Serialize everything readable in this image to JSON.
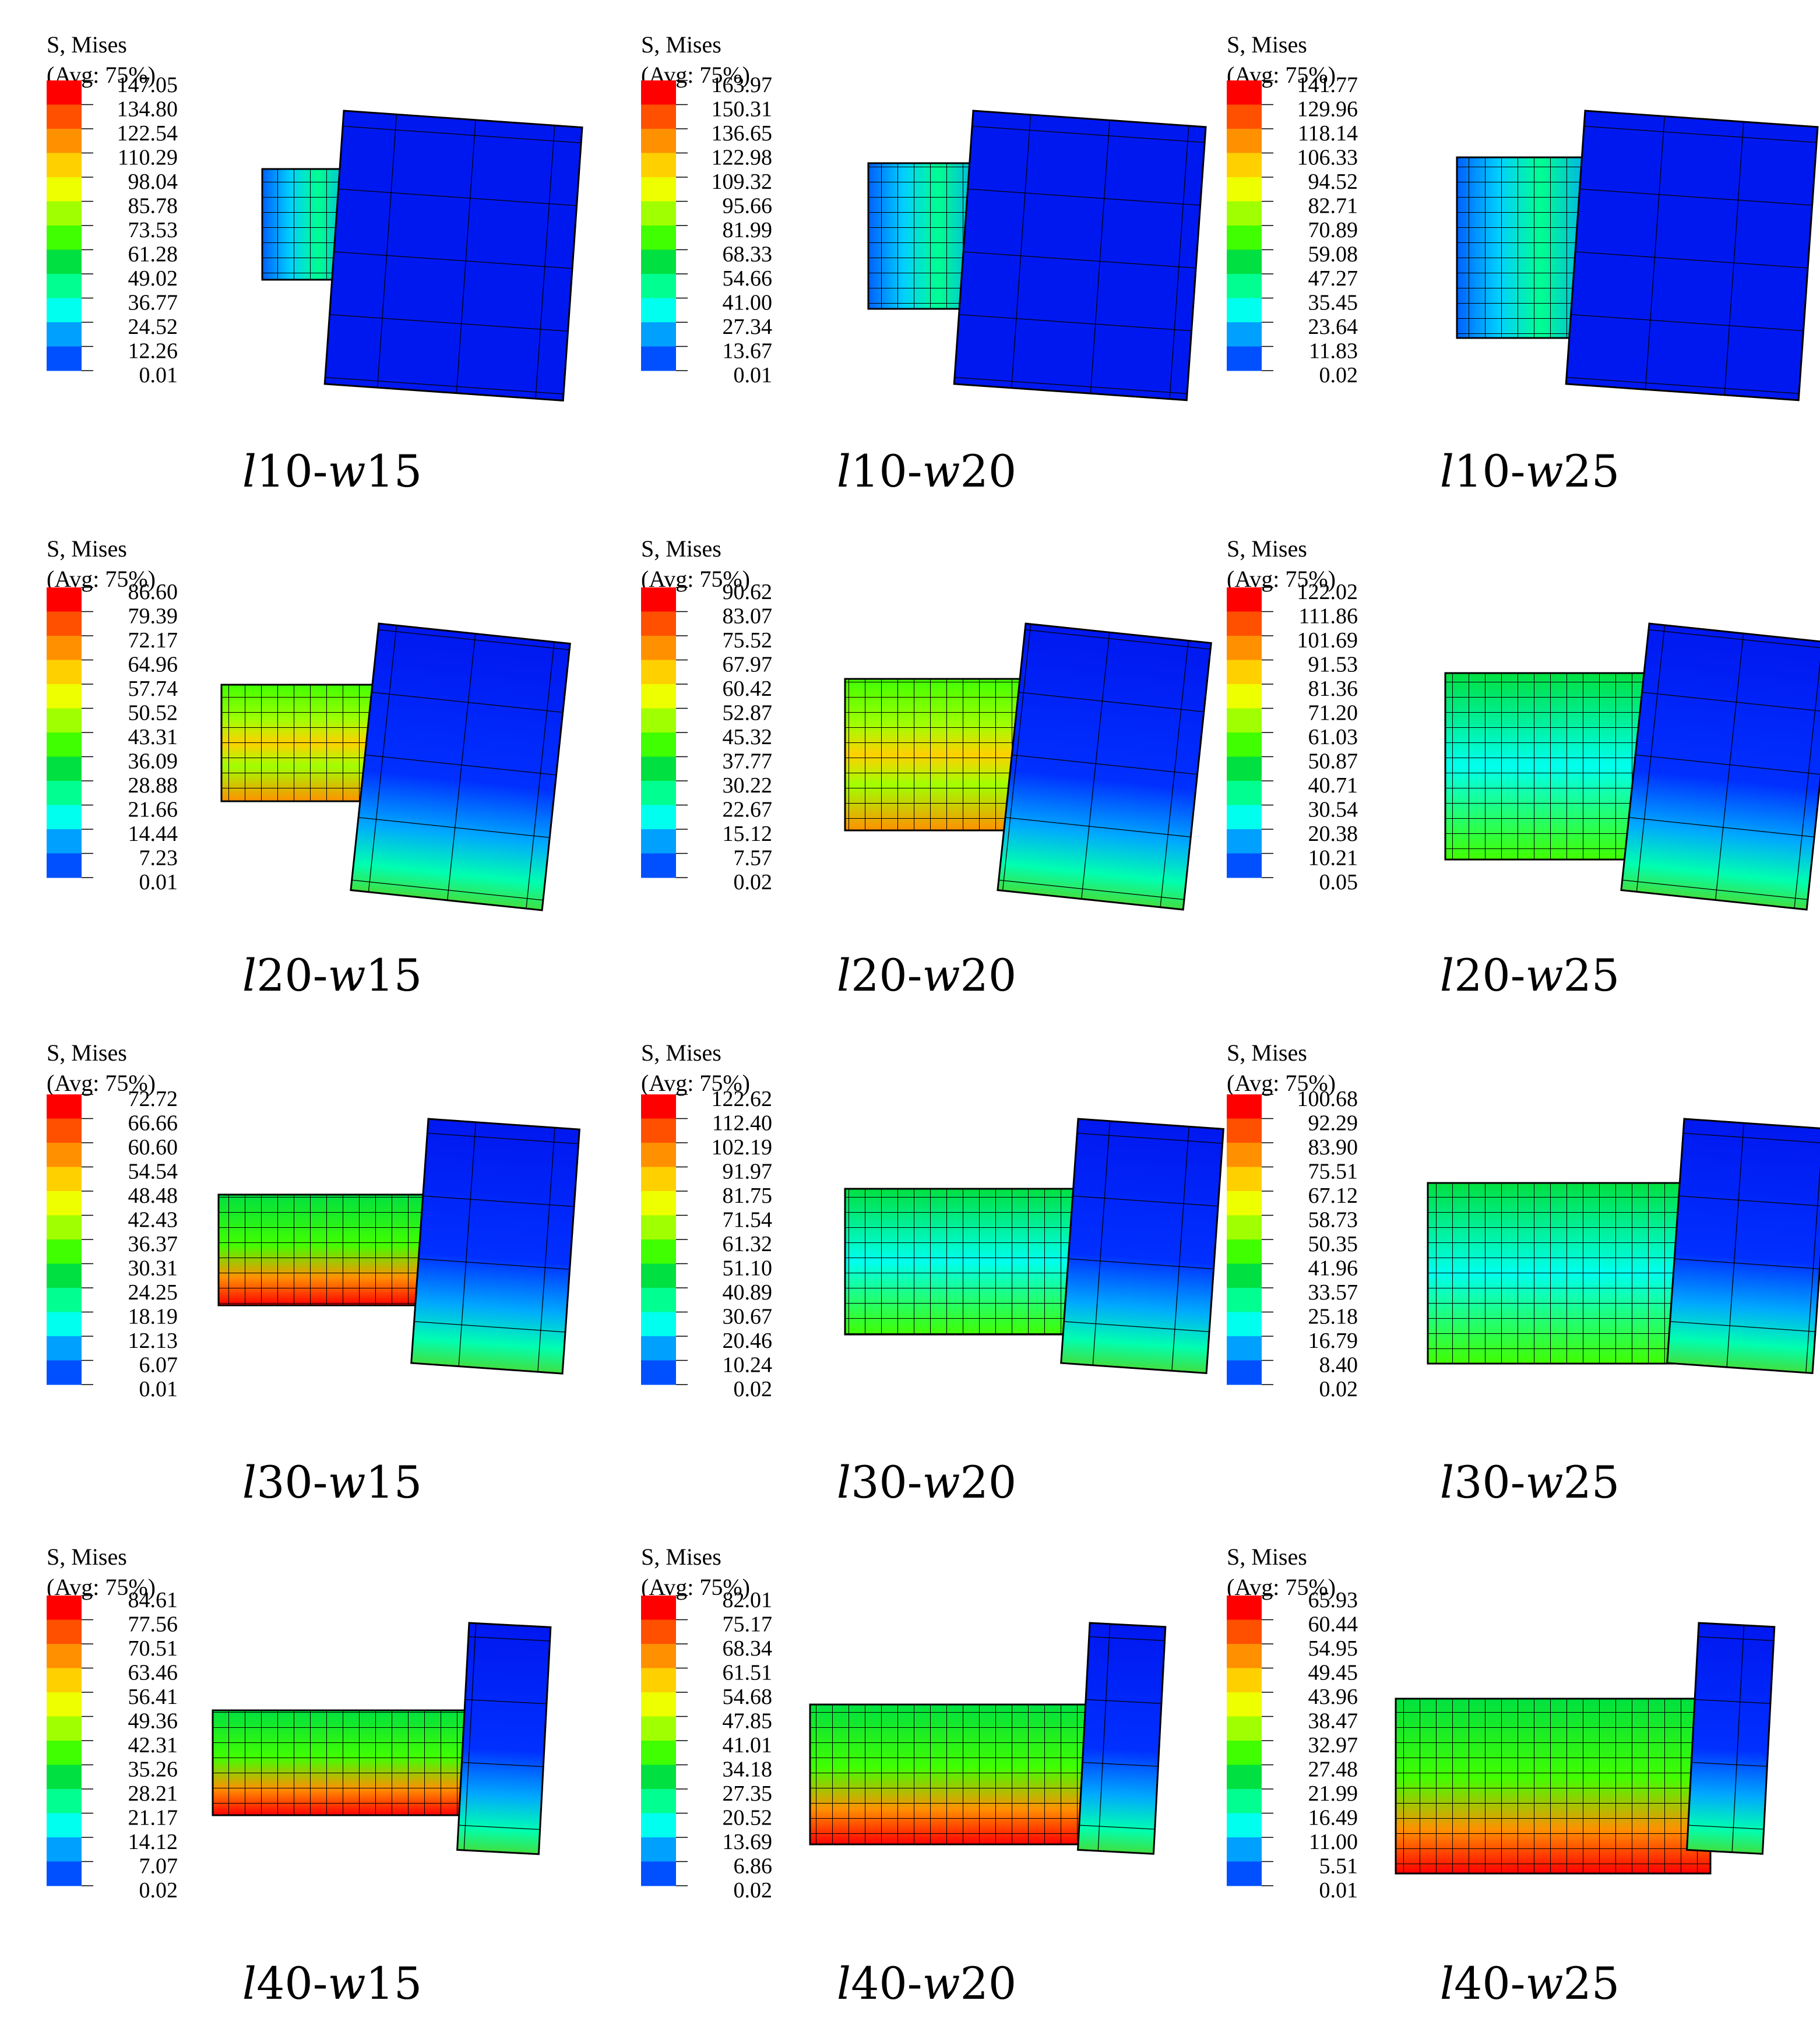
{
  "legend_title_1": "S, Mises",
  "legend_title_2": "(Avg: 75%)",
  "contour_colors": [
    "#0000ff",
    "#0050ff",
    "#00a0ff",
    "#00ffee",
    "#00ff90",
    "#00e040",
    "#40ff00",
    "#a0ff00",
    "#eeff00",
    "#ffd000",
    "#ff9000",
    "#ff5000",
    "#ff0000"
  ],
  "mesh_color": "#000000",
  "panels": [
    {
      "caption": {
        "p1": "l",
        "p2": "10-",
        "p3": "w",
        "p4": "15"
      },
      "ticks": [
        "147.05",
        "134.80",
        "122.54",
        "110.29",
        "98.04",
        "85.78",
        "73.53",
        "61.28",
        "49.02",
        "36.77",
        "24.52",
        "12.26",
        "0.01"
      ]
    },
    {
      "caption": {
        "p1": "l",
        "p2": "10-",
        "p3": "w",
        "p4": "20"
      },
      "ticks": [
        "163.97",
        "150.31",
        "136.65",
        "122.98",
        "109.32",
        "95.66",
        "81.99",
        "68.33",
        "54.66",
        "41.00",
        "27.34",
        "13.67",
        "0.01"
      ]
    },
    {
      "caption": {
        "p1": "l",
        "p2": "10-",
        "p3": "w",
        "p4": "25"
      },
      "ticks": [
        "141.77",
        "129.96",
        "118.14",
        "106.33",
        "94.52",
        "82.71",
        "70.89",
        "59.08",
        "47.27",
        "35.45",
        "23.64",
        "11.83",
        "0.02"
      ]
    },
    {
      "caption": {
        "p1": "l",
        "p2": "20-",
        "p3": "w",
        "p4": "15"
      },
      "ticks": [
        "86.60",
        "79.39",
        "72.17",
        "64.96",
        "57.74",
        "50.52",
        "43.31",
        "36.09",
        "28.88",
        "21.66",
        "14.44",
        "7.23",
        "0.01"
      ]
    },
    {
      "caption": {
        "p1": "l",
        "p2": "20-",
        "p3": "w",
        "p4": "20"
      },
      "ticks": [
        "90.62",
        "83.07",
        "75.52",
        "67.97",
        "60.42",
        "52.87",
        "45.32",
        "37.77",
        "30.22",
        "22.67",
        "15.12",
        "7.57",
        "0.02"
      ]
    },
    {
      "caption": {
        "p1": "l",
        "p2": "20-",
        "p3": "w",
        "p4": "25"
      },
      "ticks": [
        "122.02",
        "111.86",
        "101.69",
        "91.53",
        "81.36",
        "71.20",
        "61.03",
        "50.87",
        "40.71",
        "30.54",
        "20.38",
        "10.21",
        "0.05"
      ]
    },
    {
      "caption": {
        "p1": "l",
        "p2": "30-",
        "p3": "w",
        "p4": "15"
      },
      "ticks": [
        "72.72",
        "66.66",
        "60.60",
        "54.54",
        "48.48",
        "42.43",
        "36.37",
        "30.31",
        "24.25",
        "18.19",
        "12.13",
        "6.07",
        "0.01"
      ]
    },
    {
      "caption": {
        "p1": "l",
        "p2": "30-",
        "p3": "w",
        "p4": "20"
      },
      "ticks": [
        "122.62",
        "112.40",
        "102.19",
        "91.97",
        "81.75",
        "71.54",
        "61.32",
        "51.10",
        "40.89",
        "30.67",
        "20.46",
        "10.24",
        "0.02"
      ]
    },
    {
      "caption": {
        "p1": "l",
        "p2": "30-",
        "p3": "w",
        "p4": "25"
      },
      "ticks": [
        "100.68",
        "92.29",
        "83.90",
        "75.51",
        "67.12",
        "58.73",
        "50.35",
        "41.96",
        "33.57",
        "25.18",
        "16.79",
        "8.40",
        "0.02"
      ]
    },
    {
      "caption": {
        "p1": "l",
        "p2": "40-",
        "p3": "w",
        "p4": "15"
      },
      "ticks": [
        "84.61",
        "77.56",
        "70.51",
        "63.46",
        "56.41",
        "49.36",
        "42.31",
        "35.26",
        "28.21",
        "21.17",
        "14.12",
        "7.07",
        "0.02"
      ]
    },
    {
      "caption": {
        "p1": "l",
        "p2": "40-",
        "p3": "w",
        "p4": "20"
      },
      "ticks": [
        "82.01",
        "75.17",
        "68.34",
        "61.51",
        "54.68",
        "47.85",
        "41.01",
        "34.18",
        "27.35",
        "20.52",
        "13.69",
        "6.86",
        "0.02"
      ]
    },
    {
      "caption": {
        "p1": "l",
        "p2": "40-",
        "p3": "w",
        "p4": "25"
      },
      "ticks": [
        "65.93",
        "60.44",
        "54.95",
        "49.45",
        "43.96",
        "38.47",
        "32.97",
        "27.48",
        "21.99",
        "16.49",
        "11.00",
        "5.51",
        "0.01"
      ]
    }
  ]
}
